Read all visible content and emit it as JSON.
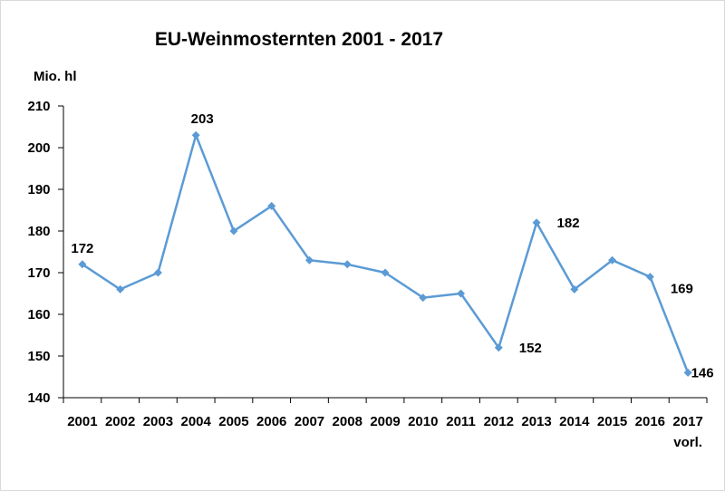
{
  "chart_data": {
    "type": "line",
    "title": "EU-Weinmosternten 2001 - 2017",
    "ylabel": "Mio. hl",
    "xlabel": "",
    "ylim": [
      140,
      210
    ],
    "yticks": [
      140,
      150,
      160,
      170,
      180,
      190,
      200,
      210
    ],
    "categories": [
      "2001",
      "2002",
      "2003",
      "2004",
      "2005",
      "2006",
      "2007",
      "2008",
      "2009",
      "2010",
      "2011",
      "2012",
      "2013",
      "2014",
      "2015",
      "2016",
      "2017"
    ],
    "category_sublabels": {
      "2017": "vorl."
    },
    "series": [
      {
        "color": "#5b9bd5",
        "values": [
          172,
          166,
          170,
          203,
          180,
          186,
          173,
          172,
          170,
          164,
          165,
          152,
          182,
          166,
          173,
          169,
          146
        ]
      }
    ],
    "data_labels": [
      {
        "category": "2001",
        "text": "172"
      },
      {
        "category": "2004",
        "text": "203"
      },
      {
        "category": "2012",
        "text": "152"
      },
      {
        "category": "2013",
        "text": "182"
      },
      {
        "category": "2016",
        "text": "169"
      },
      {
        "category": "2017",
        "text": "146"
      }
    ],
    "grid": false,
    "legend": "none"
  }
}
